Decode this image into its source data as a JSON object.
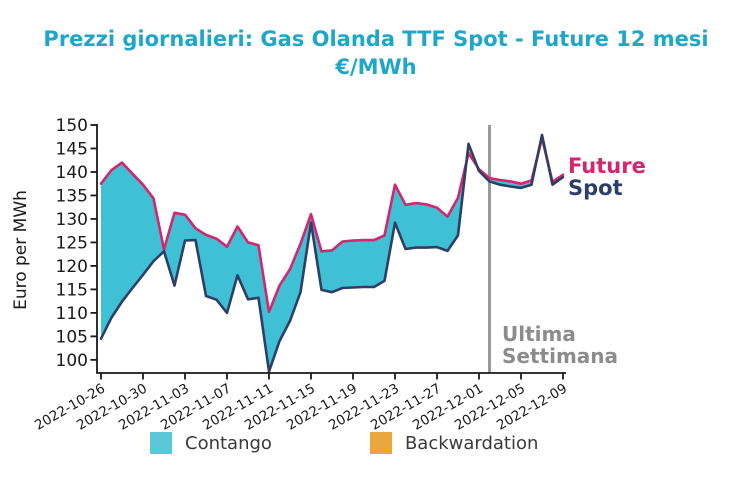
{
  "title": {
    "line1": "Prezzi giornalieri: Gas Olanda TTF Spot - Future 12 mesi",
    "line2": "€/MWh"
  },
  "axes": {
    "y_label": "Euro per MWh",
    "y_ticks": [
      100,
      105,
      110,
      115,
      120,
      125,
      130,
      135,
      140,
      145,
      150
    ],
    "x_tick_labels": [
      "2022-10-26",
      "2022-10-30",
      "2022-11-03",
      "2022-11-07",
      "2022-11-11",
      "2022-11-15",
      "2022-11-19",
      "2022-11-23",
      "2022-11-27",
      "2022-12-01",
      "2022-12-05",
      "2022-12-09"
    ]
  },
  "labels": {
    "future": "Future",
    "spot": "Spot",
    "vline_line1": "Ultima",
    "vline_line2": "Settimana"
  },
  "legend": {
    "contango": "Contango",
    "backwardation": "Backwardation"
  },
  "colors": {
    "title": "#1ea7c9",
    "future_line": "#d5256d",
    "spot_line": "#2e3f65",
    "contango_fill": "#3fc0d4",
    "backwardation_fill": "#e9a53d",
    "legend_contango_swatch": "#5bc8da",
    "legend_backwardation_swatch": "#e8a63d",
    "vline": "#9a9a9a",
    "annotation_text": "#8c8c8c",
    "axis": "#1a1a1a"
  },
  "chart_data": {
    "type": "line",
    "title": "Prezzi giornalieri: Gas Olanda TTF Spot - Future 12 mesi €/MWh",
    "xlabel": "",
    "ylabel": "Euro per MWh",
    "ylim": [
      97.2,
      150
    ],
    "x_ticks": [
      "2022-10-26",
      "2022-10-30",
      "2022-11-03",
      "2022-11-07",
      "2022-11-11",
      "2022-11-15",
      "2022-11-19",
      "2022-11-23",
      "2022-11-27",
      "2022-12-01",
      "2022-12-05",
      "2022-12-09"
    ],
    "fill_between": true,
    "fill_rule": "cyan where Future>=Spot (Contango), orange where Spot>Future (Backwardation)",
    "legend_position": "bottom",
    "legend_entries": [
      "Contango",
      "Backwardation"
    ],
    "dates": [
      "2022-10-26",
      "2022-10-27",
      "2022-10-28",
      "2022-10-29",
      "2022-10-30",
      "2022-10-31",
      "2022-11-01",
      "2022-11-02",
      "2022-11-03",
      "2022-11-04",
      "2022-11-05",
      "2022-11-06",
      "2022-11-07",
      "2022-11-08",
      "2022-11-09",
      "2022-11-10",
      "2022-11-11",
      "2022-11-12",
      "2022-11-13",
      "2022-11-14",
      "2022-11-15",
      "2022-11-16",
      "2022-11-17",
      "2022-11-18",
      "2022-11-19",
      "2022-11-20",
      "2022-11-21",
      "2022-11-22",
      "2022-11-23",
      "2022-11-24",
      "2022-11-25",
      "2022-11-26",
      "2022-11-27",
      "2022-11-28",
      "2022-11-29",
      "2022-11-30",
      "2022-12-01",
      "2022-12-02",
      "2022-12-03",
      "2022-12-04",
      "2022-12-05",
      "2022-12-06",
      "2022-12-07",
      "2022-12-08",
      "2022-12-09"
    ],
    "series": [
      {
        "name": "Future",
        "values": [
          137.5,
          140.4,
          142.0,
          139.6,
          137.3,
          134.4,
          123.5,
          131.3,
          130.9,
          128.0,
          126.6,
          125.8,
          124.1,
          128.4,
          125.0,
          124.4,
          110.2,
          115.8,
          119.3,
          124.7,
          131.0,
          123.1,
          123.3,
          125.2,
          125.4,
          125.5,
          125.5,
          126.5,
          137.3,
          133.0,
          133.4,
          133.1,
          132.4,
          130.5,
          134.5,
          144.0,
          140.6,
          138.7,
          138.3,
          138.0,
          137.5,
          138.2,
          147.2,
          137.9,
          139.4
        ]
      },
      {
        "name": "Spot",
        "values": [
          104.5,
          109.0,
          112.4,
          115.3,
          118.1,
          121.0,
          123.1,
          115.8,
          125.4,
          125.5,
          113.6,
          112.8,
          110.0,
          118.0,
          112.9,
          113.2,
          97.5,
          104.0,
          108.3,
          114.4,
          129.2,
          114.9,
          114.4,
          115.3,
          115.4,
          115.5,
          115.5,
          116.8,
          129.2,
          123.6,
          123.9,
          123.9,
          124.0,
          123.2,
          126.5,
          146.0,
          140.2,
          138.0,
          137.3,
          136.9,
          136.6,
          137.3,
          147.9,
          137.3,
          138.9
        ]
      }
    ],
    "annotations": {
      "vline_date": "2022-12-02",
      "vline_label": "Ultima Settimana",
      "series_end_labels": {
        "future": "Future",
        "spot": "Spot"
      }
    }
  }
}
